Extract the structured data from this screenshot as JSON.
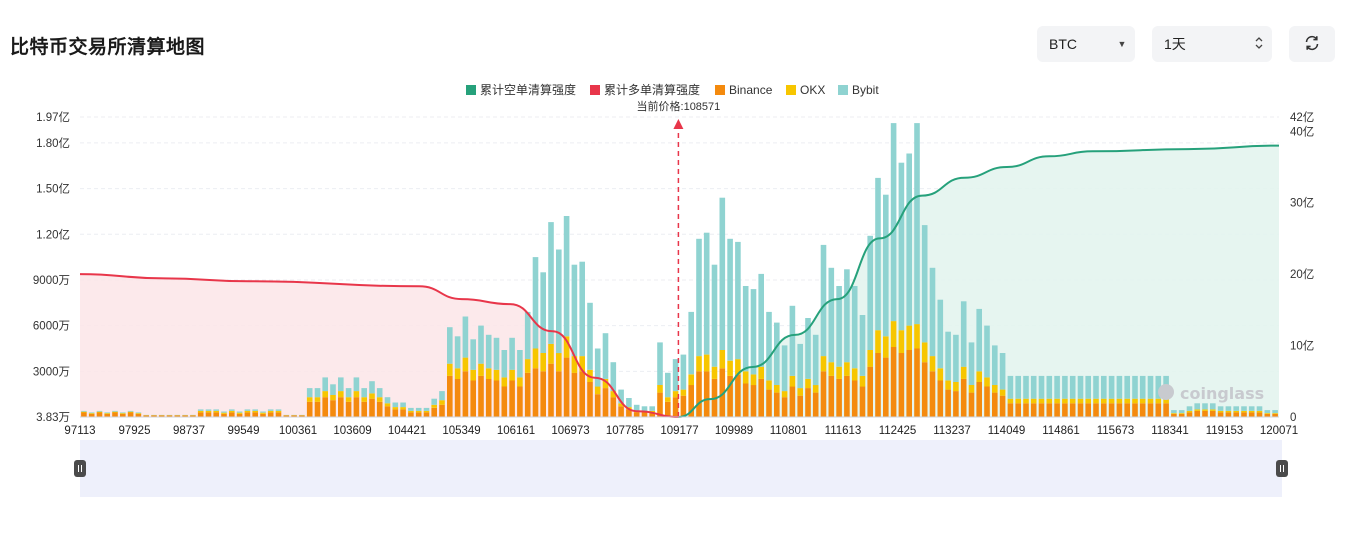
{
  "page": {
    "title": "比特币交易所清算地图",
    "coin_select": "BTC",
    "period_select": "1天",
    "watermark": "coinglass"
  },
  "colors": {
    "short_cum": "#26a17b",
    "long_cum": "#e8364a",
    "binance": "#f48a0e",
    "okx": "#f7c600",
    "bybit": "#8fd3d1"
  },
  "chart_data": {
    "type": "bar",
    "legend": [
      "累计空单清算强度",
      "累计多单清算强度",
      "Binance",
      "OKX",
      "Bybit"
    ],
    "legend_position": "top-center",
    "current_price_label": "当前价格:108571",
    "current_price": 108571,
    "x_tick_labels": [
      "97113",
      "97925",
      "98737",
      "99549",
      "100361",
      "103609",
      "104421",
      "105349",
      "106161",
      "106973",
      "107785",
      "109177",
      "109989",
      "110801",
      "111613",
      "112425",
      "113237",
      "114049",
      "114861",
      "115673",
      "118341",
      "119153",
      "120071"
    ],
    "x_range": [
      97113,
      120071
    ],
    "y_left_ticks": [
      "3.83万",
      "3000万",
      "6000万",
      "9000万",
      "1.20亿",
      "1.50亿",
      "1.80亿",
      "1.97亿"
    ],
    "y_left_range": [
      0,
      197000000
    ],
    "y_right_ticks": [
      "0",
      "10亿",
      "20亿",
      "30亿",
      "40亿",
      "42亿"
    ],
    "y_right_range": [
      0,
      4200000000
    ],
    "series": [
      {
        "name": "Binance",
        "stack": [
          0.3,
          0.2,
          0.3,
          0.2,
          0.3,
          0.2,
          0.3,
          0.2,
          0.1,
          0.1,
          0.1,
          0.1,
          0.1,
          0.1,
          0.1,
          0.3,
          0.3,
          0.3,
          0.2,
          0.3,
          0.2,
          0.3,
          0.3,
          0.2,
          0.3,
          0.3,
          0.1,
          0.1,
          0.1,
          1.0,
          1.0,
          1.3,
          1.1,
          1.3,
          1.0,
          1.3,
          1.0,
          1.2,
          1.0,
          0.7,
          0.5,
          0.5,
          0.3,
          0.3,
          0.3,
          0.6,
          0.8,
          2.7,
          2.5,
          3.0,
          2.4,
          2.7,
          2.5,
          2.4,
          2.0,
          2.4,
          2.0,
          2.9,
          3.2,
          3.0,
          3.5,
          3.0,
          3.9,
          2.9,
          3.0,
          2.3,
          1.5,
          1.9,
          1.3,
          0.7,
          0.5,
          0.3,
          0.3,
          0.3,
          1.6,
          1.0,
          1.3,
          1.4,
          2.1,
          3.0,
          3.0,
          2.5,
          3.2,
          2.7,
          2.8,
          2.2,
          2.1,
          2.5,
          1.8,
          1.6,
          1.3,
          2.0,
          1.4,
          1.9,
          1.6,
          3.0,
          2.7,
          2.5,
          2.7,
          2.4,
          2.0,
          3.3,
          4.2,
          3.9,
          4.6,
          4.2,
          4.4,
          4.5,
          3.6,
          3.0,
          2.4,
          1.8,
          1.7,
          2.5,
          1.6,
          2.3,
          2.0,
          1.6,
          1.4,
          0.9,
          0.9,
          0.9,
          0.9,
          0.9,
          0.9,
          0.9,
          0.9,
          0.9,
          0.9,
          0.9,
          0.9,
          0.9,
          0.9,
          0.9,
          0.9,
          0.9,
          0.9,
          0.9,
          0.9,
          0.9,
          0.2,
          0.2,
          0.3,
          0.4,
          0.4,
          0.4,
          0.3,
          0.3,
          0.3,
          0.3,
          0.3,
          0.3,
          0.2,
          0.2
        ],
        "values_in": "亿, bottom layer per bar"
      },
      {
        "name": "OKX",
        "stack": [
          0.05,
          0.05,
          0.05,
          0.05,
          0.05,
          0.05,
          0.05,
          0.05,
          0.02,
          0.02,
          0.02,
          0.02,
          0.02,
          0.02,
          0.02,
          0.1,
          0.1,
          0.1,
          0.08,
          0.1,
          0.08,
          0.1,
          0.1,
          0.08,
          0.1,
          0.1,
          0.02,
          0.02,
          0.02,
          0.3,
          0.3,
          0.4,
          0.35,
          0.4,
          0.3,
          0.4,
          0.3,
          0.35,
          0.3,
          0.2,
          0.15,
          0.15,
          0.1,
          0.1,
          0.1,
          0.2,
          0.3,
          0.8,
          0.7,
          0.9,
          0.7,
          0.8,
          0.7,
          0.7,
          0.6,
          0.7,
          0.6,
          0.9,
          1.3,
          1.2,
          1.3,
          1.2,
          1.4,
          1.1,
          1.0,
          0.8,
          0.5,
          0.6,
          0.4,
          0.2,
          0.15,
          0.1,
          0.1,
          0.1,
          0.5,
          0.3,
          0.4,
          0.4,
          0.7,
          1.0,
          1.1,
          0.8,
          1.2,
          1.0,
          1.0,
          0.8,
          0.7,
          0.8,
          0.6,
          0.5,
          0.4,
          0.7,
          0.5,
          0.6,
          0.5,
          1.0,
          0.9,
          0.8,
          0.9,
          0.8,
          0.7,
          1.1,
          1.5,
          1.4,
          1.7,
          1.5,
          1.6,
          1.6,
          1.3,
          1.0,
          0.8,
          0.6,
          0.6,
          0.8,
          0.5,
          0.7,
          0.6,
          0.5,
          0.4,
          0.3,
          0.3,
          0.3,
          0.3,
          0.3,
          0.3,
          0.3,
          0.3,
          0.3,
          0.3,
          0.3,
          0.3,
          0.3,
          0.3,
          0.3,
          0.3,
          0.3,
          0.3,
          0.3,
          0.3,
          0.3,
          0.05,
          0.05,
          0.1,
          0.1,
          0.1,
          0.1,
          0.1,
          0.1,
          0.1,
          0.1,
          0.1,
          0.1,
          0.05,
          0.05
        ],
        "values_in": "亿, middle layer per bar"
      },
      {
        "name": "Bybit",
        "stack": [
          0.05,
          0.05,
          0.05,
          0.05,
          0.05,
          0.05,
          0.05,
          0.05,
          0.02,
          0.02,
          0.02,
          0.02,
          0.02,
          0.02,
          0.02,
          0.1,
          0.1,
          0.1,
          0.08,
          0.1,
          0.08,
          0.1,
          0.1,
          0.08,
          0.1,
          0.1,
          0.02,
          0.02,
          0.02,
          0.6,
          0.6,
          0.9,
          0.7,
          0.9,
          0.6,
          0.9,
          0.6,
          0.8,
          0.6,
          0.4,
          0.3,
          0.3,
          0.2,
          0.2,
          0.2,
          0.4,
          0.6,
          2.4,
          2.1,
          2.7,
          2.0,
          2.5,
          2.2,
          2.1,
          1.8,
          2.1,
          1.8,
          3.1,
          6.0,
          5.3,
          8.0,
          6.8,
          7.9,
          6.0,
          6.2,
          4.4,
          2.5,
          3.0,
          1.9,
          0.9,
          0.6,
          0.4,
          0.3,
          0.3,
          2.8,
          1.6,
          2.1,
          2.3,
          4.1,
          7.7,
          8.0,
          6.7,
          10.0,
          8.0,
          7.7,
          5.6,
          5.6,
          6.1,
          4.5,
          4.1,
          3.0,
          4.6,
          2.9,
          4.0,
          3.3,
          7.3,
          6.2,
          5.3,
          6.1,
          5.4,
          4.0,
          7.5,
          10.0,
          9.3,
          13.0,
          11.0,
          11.3,
          13.2,
          7.7,
          5.8,
          4.5,
          3.2,
          3.1,
          4.3,
          2.8,
          4.1,
          3.4,
          2.6,
          2.4,
          1.5,
          1.5,
          1.5,
          1.5,
          1.5,
          1.5,
          1.5,
          1.5,
          1.5,
          1.5,
          1.5,
          1.5,
          1.5,
          1.5,
          1.5,
          1.5,
          1.5,
          1.5,
          1.5,
          1.5,
          1.5,
          0.2,
          0.2,
          0.3,
          0.4,
          0.4,
          0.4,
          0.3,
          0.3,
          0.3,
          0.3,
          0.3,
          0.3,
          0.2,
          0.2
        ],
        "values_in": "亿, top layer per bar"
      },
      {
        "name": "累计多单清算强度",
        "axis": "right",
        "x": [
          97113,
          98737,
          100361,
          103609,
          104421,
          105349,
          106161,
          106973,
          107785,
          108571
        ],
        "y_yi": [
          20.0,
          19.4,
          19.0,
          18.3,
          16.5,
          15.8,
          12.0,
          5.5,
          0.8,
          0.0
        ]
      },
      {
        "name": "累计空单清算强度",
        "axis": "right",
        "x": [
          108571,
          109177,
          109989,
          110801,
          111613,
          112425,
          113237,
          114049,
          114861,
          115673,
          116500,
          118341,
          120071
        ],
        "y_yi": [
          0.0,
          2.5,
          7.0,
          11.5,
          16.5,
          25.0,
          31.0,
          33.5,
          35.0,
          36.5,
          37.2,
          37.5,
          38.0
        ]
      }
    ]
  }
}
